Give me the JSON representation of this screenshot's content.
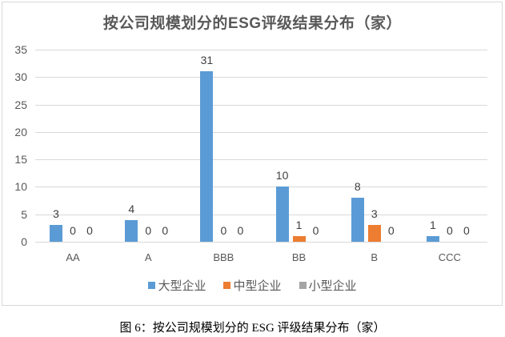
{
  "chart_data": {
    "type": "bar",
    "title": "按公司规模划分的ESG评级结果分布（家）",
    "categories": [
      "AA",
      "A",
      "BBB",
      "BB",
      "B",
      "CCC"
    ],
    "series": [
      {
        "name": "大型企业",
        "color": "#5B9BD5",
        "values": [
          3,
          4,
          31,
          10,
          8,
          1
        ]
      },
      {
        "name": "中型企业",
        "color": "#ED7D31",
        "values": [
          0,
          0,
          0,
          1,
          3,
          0
        ]
      },
      {
        "name": "小型企业",
        "color": "#A5A5A5",
        "values": [
          0,
          0,
          0,
          0,
          0,
          0
        ]
      }
    ],
    "xlabel": "",
    "ylabel": "",
    "ylim": [
      0,
      35
    ],
    "yticks": [
      0,
      5,
      10,
      15,
      20,
      25,
      30,
      35
    ],
    "grid": true,
    "legend_position": "bottom",
    "data_labels": true
  },
  "caption": "图 6：按公司规模划分的 ESG 评级结果分布（家）"
}
